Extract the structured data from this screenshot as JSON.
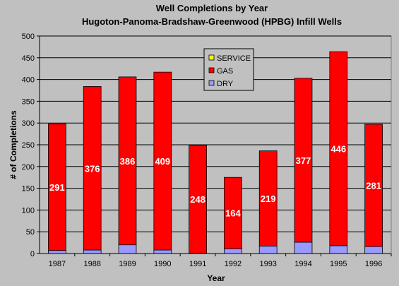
{
  "chart_data": {
    "type": "bar",
    "stacked": true,
    "title": "Well Completions by Year",
    "subtitle": "Hugoton-Panoma-Bradshaw-Greenwood (HPBG) Infill Wells",
    "xlabel": "Year",
    "ylabel": "# of Completions",
    "ylim": [
      0,
      500
    ],
    "yticks": [
      0,
      50,
      100,
      150,
      200,
      250,
      300,
      350,
      400,
      450,
      500
    ],
    "grid": true,
    "legend_position": "top-center",
    "categories": [
      "1987",
      "1988",
      "1989",
      "1990",
      "1991",
      "1992",
      "1993",
      "1994",
      "1995",
      "1996"
    ],
    "series": [
      {
        "name": "DRY",
        "color": "#9999ff",
        "values": [
          7,
          8,
          20,
          8,
          1,
          11,
          17,
          26,
          18,
          16
        ]
      },
      {
        "name": "GAS",
        "color": "#ff0000",
        "values": [
          291,
          376,
          386,
          409,
          248,
          164,
          219,
          377,
          446,
          281
        ]
      },
      {
        "name": "SERVICE",
        "color": "#ffff00",
        "values": [
          0,
          0,
          0,
          0,
          0,
          0,
          0,
          0,
          0,
          0
        ]
      }
    ],
    "data_labels_series": "GAS",
    "legend_order": [
      "SERVICE",
      "GAS",
      "DRY"
    ],
    "plot_background": "#c0c0c0",
    "gridline_color": "#000000"
  }
}
